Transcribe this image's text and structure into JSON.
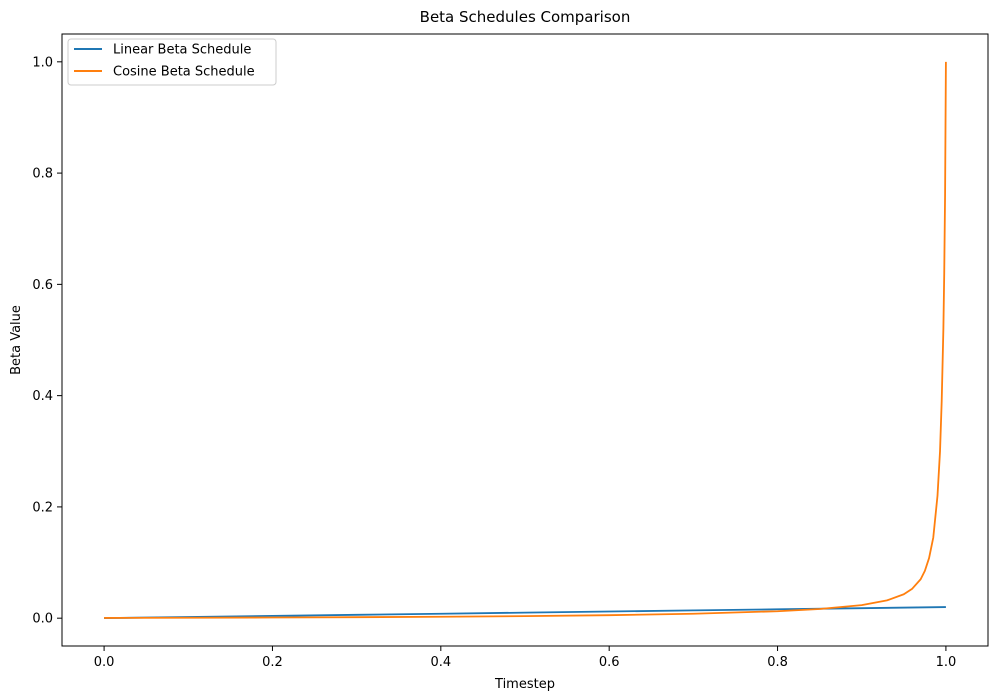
{
  "chart_data": {
    "type": "line",
    "title": "Beta Schedules Comparison",
    "xlabel": "Timestep",
    "ylabel": "Beta Value",
    "xlim": [
      -0.05,
      1.05
    ],
    "ylim": [
      -0.05,
      1.05
    ],
    "xticks": [
      0.0,
      0.2,
      0.4,
      0.6,
      0.8,
      1.0
    ],
    "xtick_labels": [
      "0.0",
      "0.2",
      "0.4",
      "0.6",
      "0.8",
      "1.0"
    ],
    "yticks": [
      0.0,
      0.2,
      0.4,
      0.6,
      0.8,
      1.0
    ],
    "ytick_labels": [
      "0.0",
      "0.2",
      "0.4",
      "0.6",
      "0.8",
      "1.0"
    ],
    "grid": false,
    "legend_position": "top-left",
    "series": [
      {
        "name": "Linear Beta Schedule",
        "color": "#1f77b4",
        "x": [
          0.0,
          0.1,
          0.2,
          0.3,
          0.4,
          0.5,
          0.6,
          0.7,
          0.8,
          0.9,
          1.0
        ],
        "y": [
          0.0001,
          0.0021,
          0.0041,
          0.0061,
          0.008,
          0.01,
          0.012,
          0.014,
          0.016,
          0.018,
          0.02
        ]
      },
      {
        "name": "Cosine Beta Schedule",
        "color": "#ff7f0e",
        "x": [
          0.0,
          0.1,
          0.2,
          0.3,
          0.4,
          0.5,
          0.6,
          0.7,
          0.8,
          0.85,
          0.9,
          0.93,
          0.95,
          0.96,
          0.97,
          0.975,
          0.98,
          0.985,
          0.99,
          0.993,
          0.995,
          0.997,
          0.998,
          0.999,
          1.0
        ],
        "y": [
          0.0004,
          0.0008,
          0.0012,
          0.0018,
          0.0026,
          0.0037,
          0.0054,
          0.008,
          0.0125,
          0.0165,
          0.0235,
          0.032,
          0.043,
          0.053,
          0.07,
          0.085,
          0.108,
          0.145,
          0.22,
          0.3,
          0.39,
          0.52,
          0.62,
          0.76,
          1.0
        ]
      }
    ]
  }
}
